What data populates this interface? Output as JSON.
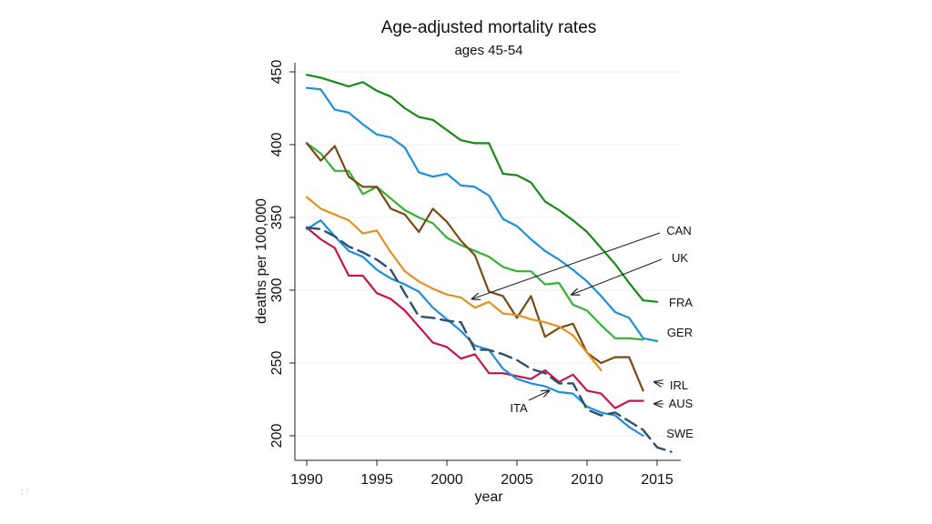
{
  "slide": {
    "number": "17"
  },
  "chart_data": {
    "type": "line",
    "title": "Age-adjusted mortality rates",
    "subtitle": "ages 45-54",
    "xlabel": "year",
    "ylabel": "deaths per 100,000",
    "xlim": [
      1989.5,
      2016.8
    ],
    "ylim": [
      193,
      456
    ],
    "xticks": [
      1990,
      1995,
      2000,
      2005,
      2010,
      2015
    ],
    "yticks": [
      200,
      250,
      300,
      350,
      400,
      450
    ],
    "grid": true,
    "legend": "direct labels at right end of lines",
    "series": [
      {
        "name": "FRA",
        "color": "#178a17",
        "dash": false,
        "label_pos": "end",
        "x_start": 1990,
        "values": [
          448,
          446,
          443,
          440,
          443,
          437,
          433,
          425,
          419,
          417,
          410,
          403,
          401,
          401,
          380,
          379,
          374,
          361,
          355,
          348,
          340,
          329,
          318,
          305,
          293,
          292
        ]
      },
      {
        "name": "GER",
        "color": "#1f8ee0",
        "dash": false,
        "label_pos": "end",
        "x_start": 1990,
        "values": [
          439,
          438,
          424,
          422,
          414,
          407,
          405,
          398,
          381,
          378,
          380,
          372,
          371,
          365,
          349,
          344,
          335,
          327,
          321,
          314,
          306,
          296,
          285,
          281,
          267,
          265
        ]
      },
      {
        "name": "UK",
        "color": "#33b233",
        "dash": false,
        "label_pos": "end",
        "x_start": 1990,
        "values": [
          401,
          394,
          382,
          382,
          366,
          371,
          363,
          355,
          350,
          346,
          336,
          331,
          327,
          323,
          316,
          313,
          313,
          304,
          305,
          290,
          286,
          276,
          267,
          267,
          266
        ]
      },
      {
        "name": "IRL",
        "color": "#7b4a12",
        "dash": false,
        "label_pos": "end",
        "x_start": 1990,
        "values": [
          401,
          389,
          399,
          378,
          371,
          371,
          356,
          352,
          340,
          356,
          347,
          334,
          324,
          299,
          296,
          281,
          296,
          268,
          274,
          277,
          257,
          250,
          254,
          254,
          231
        ]
      },
      {
        "name": "CAN",
        "color": "#e09320",
        "dash": false,
        "label_pos": "end",
        "x_start": 1990,
        "values": [
          364,
          356,
          352,
          348,
          339,
          341,
          326,
          313,
          306,
          301,
          297,
          295,
          288,
          292,
          284,
          283,
          280,
          278,
          275,
          269,
          257,
          245
        ]
      },
      {
        "name": "AUS",
        "color": "#c8144a",
        "dash": false,
        "label_pos": "end",
        "x_start": 1990,
        "values": [
          343,
          335,
          329,
          310,
          310,
          298,
          294,
          286,
          275,
          264,
          261,
          253,
          256,
          243,
          243,
          241,
          239,
          245,
          237,
          242,
          231,
          229,
          219,
          224,
          224
        ]
      },
      {
        "name": "ITA",
        "color": "#1e8ee0",
        "dash": false,
        "label_pos": "mid",
        "x_start": 1990,
        "values": [
          342,
          348,
          337,
          327,
          323,
          314,
          308,
          304,
          299,
          288,
          280,
          272,
          262,
          259,
          246,
          239,
          236,
          234,
          230,
          229,
          220,
          216,
          214,
          206,
          200
        ]
      },
      {
        "name": "SWE",
        "color": "#2e4f6e",
        "dash": true,
        "label_pos": "end",
        "x_start": 1990,
        "values": [
          343,
          342,
          337,
          330,
          326,
          321,
          314,
          298,
          282,
          281,
          279,
          278,
          259,
          259,
          256,
          252,
          246,
          243,
          236,
          236,
          218,
          214,
          216,
          210,
          204,
          192,
          189
        ]
      }
    ],
    "annotations": [
      {
        "text": "CAN",
        "arrow_to": [
          2001.8,
          294
        ]
      },
      {
        "text": "UK",
        "arrow_to": [
          2008.9,
          297
        ]
      },
      {
        "text": "FRA"
      },
      {
        "text": "GER"
      },
      {
        "text": "IRL",
        "arrow_to": [
          2014.8,
          237
        ]
      },
      {
        "text": "AUS",
        "arrow_to": [
          2014.8,
          222
        ]
      },
      {
        "text": "ITA",
        "arrow_to": [
          2007.3,
          231
        ]
      },
      {
        "text": "SWE"
      }
    ]
  }
}
